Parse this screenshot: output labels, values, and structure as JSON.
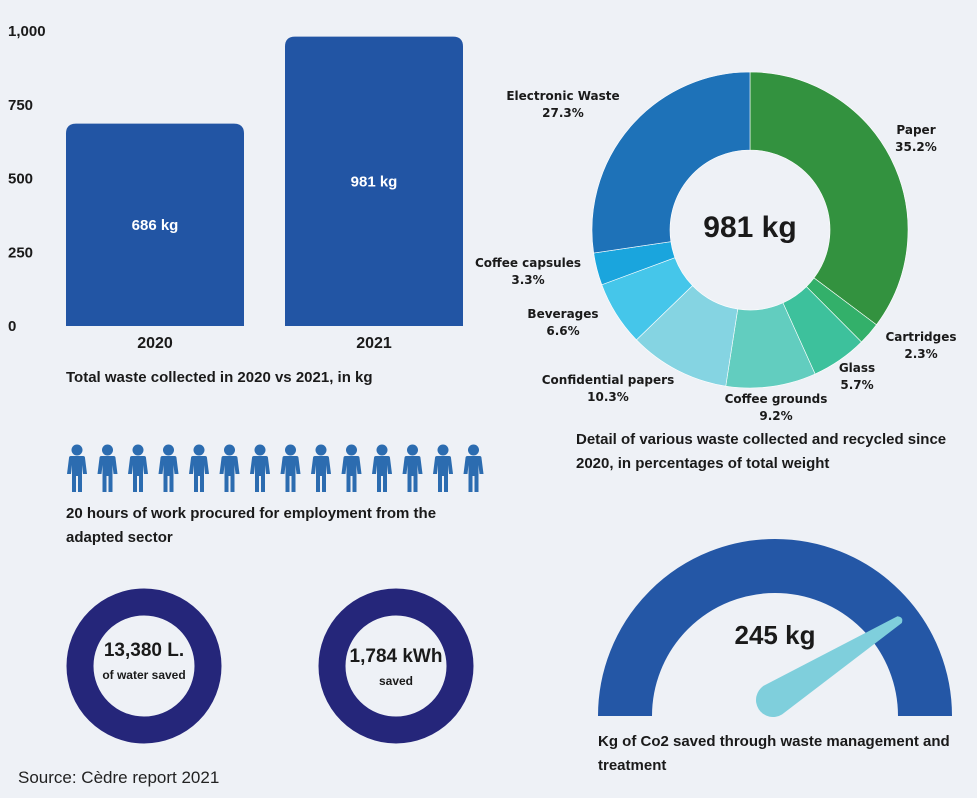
{
  "chart_data": [
    {
      "type": "bar",
      "categories": [
        "2020",
        "2021"
      ],
      "values": [
        686,
        981
      ],
      "data_labels": [
        "686 kg",
        "981 kg"
      ],
      "y_ticks": [
        "0",
        "250",
        "500",
        "750",
        "1,000"
      ],
      "ylim": [
        0,
        1000
      ],
      "grid": false,
      "color": "#2255a4",
      "caption": "Total waste collected in 2020 vs 2021, in kg"
    },
    {
      "type": "pie",
      "donut": true,
      "center_label": "981 kg",
      "slices": [
        {
          "name": "Paper",
          "value": 35.2,
          "label": "35.2%",
          "color": "#33923f"
        },
        {
          "name": "Cartridges",
          "value": 2.3,
          "label": "2.3%",
          "color": "#33b06a"
        },
        {
          "name": "Glass",
          "value": 5.7,
          "label": "5.7%",
          "color": "#3dc19c"
        },
        {
          "name": "Coffee grounds",
          "value": 9.2,
          "label": "9.2%",
          "color": "#62cdbf"
        },
        {
          "name": "Confidential papers",
          "value": 10.3,
          "label": "10.3%",
          "color": "#85d4e2"
        },
        {
          "name": "Beverages",
          "value": 6.6,
          "label": "6.6%",
          "color": "#45c6ea"
        },
        {
          "name": "Coffee capsules",
          "value": 3.3,
          "label": "3.3%",
          "color": "#1aa5dd"
        },
        {
          "name": "Electronic Waste",
          "value": 27.3,
          "label": "27.3%",
          "color": "#1e72b8"
        }
      ],
      "caption": "Detail of various waste collected and recycled since 2020, in percentages of total weight"
    }
  ],
  "employment": {
    "people_count": 14,
    "icon": "person-icon",
    "color": "#2c6cb0",
    "caption": "20 hours of work procured for employment from the adapted sector"
  },
  "water": {
    "value": "13,380 L.",
    "label": "of water saved",
    "color": "#25267a"
  },
  "energy": {
    "value": "1,784  kWh",
    "label": "saved",
    "color": "#25267a"
  },
  "co2": {
    "value": "245 kg",
    "caption": "Kg of Co2 saved through waste management and treatment",
    "gauge_color": "#2457a6",
    "needle_color": "#7fcfdc",
    "needle_fraction": 0.82
  },
  "source": "Source:  Cèdre report 2021"
}
